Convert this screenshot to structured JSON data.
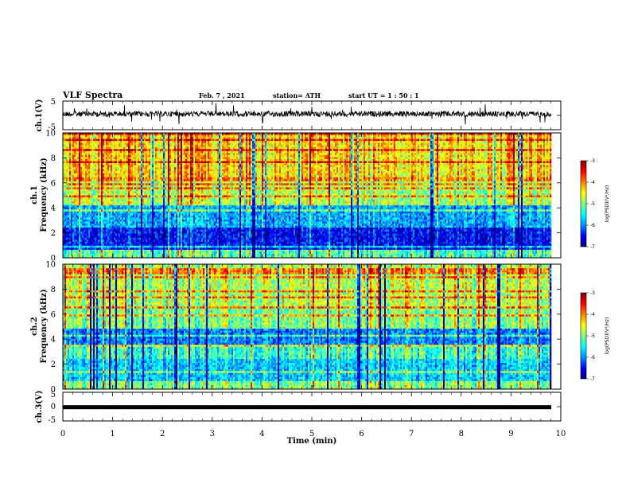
{
  "header": {
    "title": "VLF Spectra",
    "date": "Feb. 7 , 2021",
    "station": "station= ATH",
    "start": "start  UT =   1 : 50 : 1"
  },
  "chart_data": [
    {
      "type": "line",
      "panel": "ch1-waveform",
      "ylabel": "ch.1(V)",
      "xlim": [
        0,
        10
      ],
      "ylim": [
        -5,
        5
      ],
      "yticks": [
        "5",
        "-5"
      ],
      "data_xlim": [
        0,
        9.8
      ]
    },
    {
      "type": "heatmap",
      "panel": "ch1-spectrogram",
      "ylabel_line1": "ch.1",
      "ylabel_line2": "Frequency  (kHz)",
      "ylim": [
        0,
        10
      ],
      "yticks": [
        "0",
        "2",
        "4",
        "6",
        "8",
        "10"
      ],
      "colorbar": {
        "label": "log(PSD)(V²/Hz)",
        "range": [
          -7,
          -3
        ],
        "ticks": [
          "-3",
          "-4",
          "-5",
          "-6",
          "-7"
        ],
        "colors": [
          "#000080",
          "#0000ff",
          "#0090ff",
          "#00ffff",
          "#80ff80",
          "#ffff00",
          "#ff8000",
          "#ff0000",
          "#800000"
        ]
      }
    },
    {
      "type": "heatmap",
      "panel": "ch2-spectrogram",
      "ylabel_line1": "ch.2",
      "ylabel_line2": "Frequency  (kHz)",
      "ylim": [
        0,
        10
      ],
      "yticks": [
        "0",
        "2",
        "4",
        "6",
        "8",
        "10"
      ],
      "colorbar": {
        "label": "log(PSD)(V²/Hz)",
        "range": [
          -7,
          -3
        ],
        "ticks": [
          "-3",
          "-4",
          "-5",
          "-6",
          "-7"
        ],
        "colors": [
          "#000080",
          "#0000ff",
          "#0090ff",
          "#00ffff",
          "#80ff80",
          "#ffff00",
          "#ff8000",
          "#ff0000",
          "#800000"
        ]
      }
    },
    {
      "type": "line",
      "panel": "ch3-waveform",
      "ylabel": "ch.3(V)",
      "xlabel": "Time  (min)",
      "xlim": [
        0,
        10
      ],
      "ylim": [
        -5,
        5
      ],
      "yticks": [
        "5",
        "0",
        "-5"
      ],
      "xticks": [
        "0",
        "1",
        "2",
        "3",
        "4",
        "5",
        "6",
        "7",
        "8",
        "9",
        "10"
      ],
      "signal_level": -0.2
    }
  ]
}
